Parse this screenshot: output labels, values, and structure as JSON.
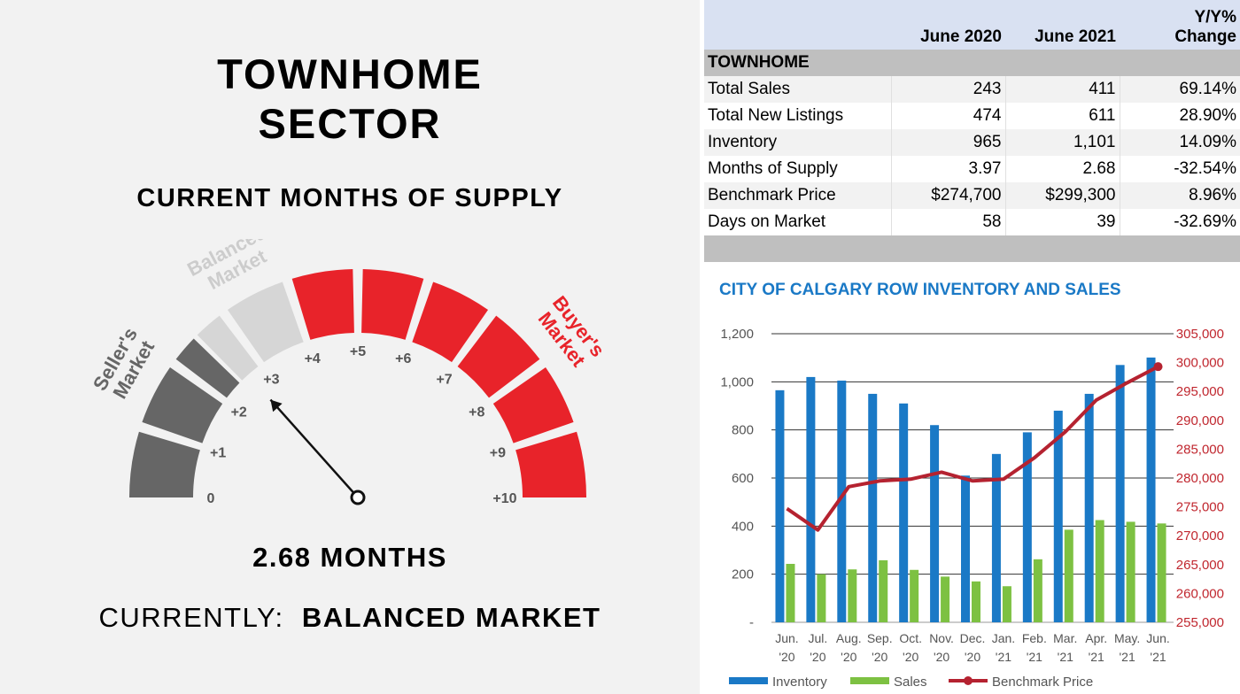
{
  "gauge": {
    "title_line1": "TOWNHOME",
    "title_line2": "SECTOR",
    "subtitle": "CURRENT MONTHS OF SUPPLY",
    "value": 2.68,
    "min": 0,
    "max": 10,
    "reading": "2.68 MONTHS",
    "status_prefix": "CURRENTLY:",
    "status_value": "BALANCED MARKET",
    "tick_labels": [
      "0",
      "+1",
      "+2",
      "+3",
      "+4",
      "+5",
      "+6",
      "+7",
      "+8",
      "+9",
      "+10"
    ],
    "zones": [
      {
        "line1": "Seller's",
        "line2": "Market",
        "color": "#666666"
      },
      {
        "line1": "Balanced",
        "line2": "Market",
        "color": "#d6d6d6"
      },
      {
        "line1": "Buyer's",
        "line2": "Market",
        "color": "#e8232a"
      }
    ]
  },
  "table": {
    "headers": [
      "",
      "June 2020",
      "June 2021",
      "Y/Y%",
      "Change"
    ],
    "section": "TOWNHOME",
    "rows": [
      {
        "label": "Total Sales",
        "june_2020": "243",
        "june_2021": "411",
        "change": "69.14%"
      },
      {
        "label": "Total New Listings",
        "june_2020": "474",
        "june_2021": "611",
        "change": "28.90%"
      },
      {
        "label": "Inventory",
        "june_2020": "965",
        "june_2021": "1,101",
        "change": "14.09%"
      },
      {
        "label": "Months of Supply",
        "june_2020": "3.97",
        "june_2021": "2.68",
        "change": "-32.54%"
      },
      {
        "label": "Benchmark Price",
        "june_2020": "$274,700",
        "june_2021": "$299,300",
        "change": "8.96%"
      },
      {
        "label": "Days on Market",
        "june_2020": "58",
        "june_2021": "39",
        "change": "-32.69%"
      }
    ]
  },
  "chart_data": {
    "type": "bar",
    "title": "CITY OF CALGARY ROW INVENTORY AND SALES",
    "categories": [
      [
        "Jun.",
        "'20"
      ],
      [
        "Jul.",
        "'20"
      ],
      [
        "Aug.",
        "'20"
      ],
      [
        "Sep.",
        "'20"
      ],
      [
        "Oct.",
        "'20"
      ],
      [
        "Nov.",
        "'20"
      ],
      [
        "Dec.",
        "'20"
      ],
      [
        "Jan.",
        "'21"
      ],
      [
        "Feb.",
        "'21"
      ],
      [
        "Mar.",
        "'21"
      ],
      [
        "Apr.",
        "'21"
      ],
      [
        "May.",
        "'21"
      ],
      [
        "Jun.",
        "'21"
      ]
    ],
    "series": [
      {
        "name": "Inventory",
        "type": "bar",
        "axis": "left",
        "color": "#1a79c6",
        "values": [
          965,
          1020,
          1005,
          950,
          910,
          820,
          610,
          700,
          790,
          880,
          950,
          1070,
          1101
        ]
      },
      {
        "name": "Sales",
        "type": "bar",
        "axis": "left",
        "color": "#7dc142",
        "values": [
          243,
          200,
          220,
          258,
          218,
          190,
          170,
          150,
          262,
          385,
          425,
          418,
          411
        ]
      },
      {
        "name": "Benchmark Price",
        "type": "line",
        "axis": "right",
        "color": "#b52230",
        "values": [
          274700,
          271000,
          278500,
          279500,
          279800,
          281000,
          279500,
          279800,
          283500,
          288000,
          293500,
          296500,
          299300
        ]
      }
    ],
    "y_left": {
      "min": 0,
      "max": 1200,
      "ticks": [
        0,
        200,
        400,
        600,
        800,
        1000,
        1200
      ],
      "tick_labels": [
        "-",
        "200",
        "400",
        "600",
        "800",
        "1,000",
        "1,200"
      ]
    },
    "y_right": {
      "min": 255000,
      "max": 305000,
      "ticks": [
        255000,
        260000,
        265000,
        270000,
        275000,
        280000,
        285000,
        290000,
        295000,
        300000,
        305000
      ],
      "tick_labels": [
        "255,000",
        "260,000",
        "265,000",
        "270,000",
        "275,000",
        "280,000",
        "285,000",
        "290,000",
        "295,000",
        "300,000",
        "305,000"
      ]
    },
    "grid": true,
    "legend": "bottom"
  }
}
